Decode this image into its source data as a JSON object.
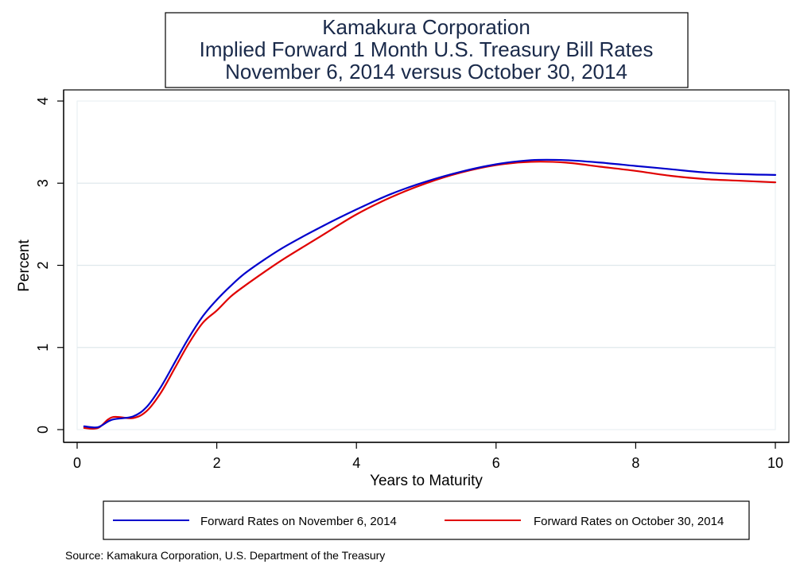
{
  "chart_data": {
    "type": "line",
    "title": [
      "Kamakura Corporation",
      "Implied Forward 1 Month U.S. Treasury Bill Rates",
      "November 6, 2014 versus October 30, 2014"
    ],
    "xlabel": "Years to Maturity",
    "ylabel": "Percent",
    "xlim": [
      0,
      10
    ],
    "ylim": [
      0,
      4
    ],
    "xticks": [
      0,
      2,
      4,
      6,
      8,
      10
    ],
    "yticks": [
      0,
      1,
      2,
      3,
      4
    ],
    "grid": "horizontal",
    "legend_position": "bottom",
    "colors": {
      "title": "#1a2a4a",
      "grid": "#dfe8ec",
      "nov6": "#0000cc",
      "oct30": "#e00000"
    },
    "x": [
      0.1,
      0.3,
      0.5,
      0.8,
      1.0,
      1.2,
      1.4,
      1.6,
      1.8,
      2.0,
      2.2,
      2.4,
      2.7,
      3.0,
      3.5,
      4.0,
      4.5,
      5.0,
      5.5,
      6.0,
      6.5,
      7.0,
      7.5,
      8.0,
      8.5,
      9.0,
      9.5,
      10.0
    ],
    "series": [
      {
        "name": "Forward Rates on November 6, 2014",
        "values": [
          0.04,
          0.03,
          0.12,
          0.16,
          0.28,
          0.52,
          0.82,
          1.12,
          1.38,
          1.58,
          1.75,
          1.9,
          2.08,
          2.24,
          2.47,
          2.68,
          2.87,
          3.02,
          3.14,
          3.23,
          3.28,
          3.28,
          3.25,
          3.21,
          3.17,
          3.13,
          3.11,
          3.1
        ]
      },
      {
        "name": "Forward Rates on October 30, 2014",
        "values": [
          0.02,
          0.02,
          0.15,
          0.14,
          0.23,
          0.45,
          0.75,
          1.05,
          1.3,
          1.45,
          1.62,
          1.75,
          1.93,
          2.1,
          2.36,
          2.62,
          2.83,
          3.0,
          3.13,
          3.22,
          3.26,
          3.25,
          3.2,
          3.15,
          3.09,
          3.05,
          3.03,
          3.01
        ]
      }
    ]
  },
  "source": "Source: Kamakura Corporation, U.S. Department of the Treasury"
}
